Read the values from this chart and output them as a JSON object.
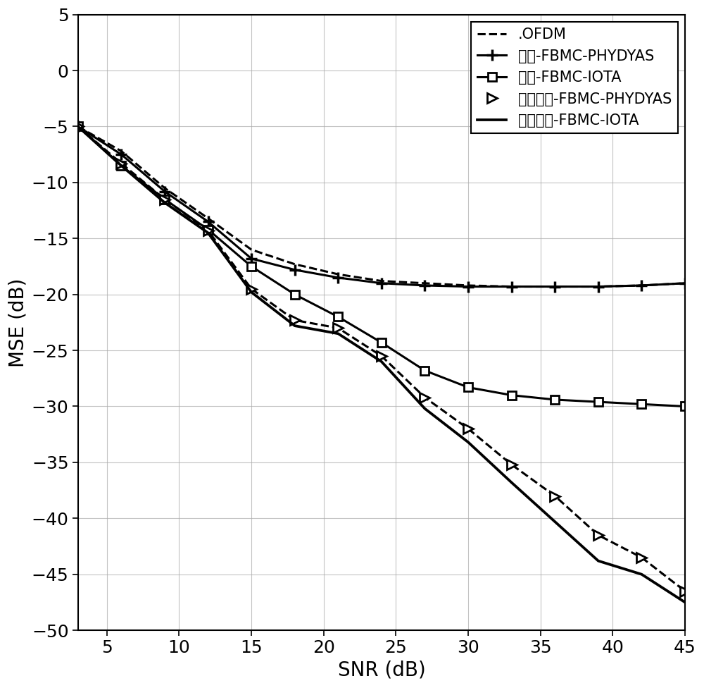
{
  "snr": [
    3,
    6,
    9,
    12,
    15,
    18,
    21,
    24,
    27,
    30,
    33,
    36,
    39,
    42,
    45
  ],
  "ofdm": [
    -5.0,
    -7.2,
    -10.5,
    -13.2,
    -16.0,
    -17.3,
    -18.2,
    -18.8,
    -19.0,
    -19.2,
    -19.3,
    -19.3,
    -19.3,
    -19.2,
    -19.0
  ],
  "trad_phy": [
    -5.0,
    -7.5,
    -10.8,
    -13.5,
    -16.8,
    -17.8,
    -18.5,
    -19.0,
    -19.2,
    -19.3,
    -19.3,
    -19.3,
    -19.3,
    -19.2,
    -19.0
  ],
  "trad_iota": [
    -5.0,
    -8.5,
    -11.5,
    -14.2,
    -17.5,
    -20.0,
    -22.0,
    -24.3,
    -26.8,
    -28.3,
    -29.0,
    -29.4,
    -29.6,
    -29.8,
    -30.0
  ],
  "ic_phy": [
    -5.0,
    -8.3,
    -11.5,
    -14.3,
    -19.5,
    -22.3,
    -23.0,
    -25.5,
    -29.2,
    -32.0,
    -35.2,
    -38.0,
    -41.5,
    -43.5,
    -46.5
  ],
  "ic_iota": [
    -5.0,
    -8.5,
    -11.8,
    -14.5,
    -19.8,
    -22.8,
    -23.5,
    -26.0,
    -30.2,
    -33.2,
    -36.8,
    -40.3,
    -43.8,
    -45.0,
    -47.5
  ],
  "xlim": [
    3,
    45
  ],
  "ylim": [
    -50,
    5
  ],
  "xlabel": "SNR (dB)",
  "ylabel": "MSE (dB)",
  "xticks": [
    5,
    10,
    15,
    20,
    25,
    30,
    35,
    40,
    45
  ],
  "yticks": [
    5,
    0,
    -5,
    -10,
    -15,
    -20,
    -25,
    -30,
    -35,
    -40,
    -45,
    -50
  ],
  "legend_labels": [
    ".OFDM",
    "传统-FBMC-PHYDYAS",
    "传统-FBMC-IOTA",
    "干扰消除-FBMC-PHYDYAS",
    "干扰消除-FBMC-IOTA"
  ],
  "background_color": "#ffffff",
  "grid_color": "#aaaaaa",
  "fontsize_tick": 18,
  "fontsize_label": 20,
  "fontsize_legend": 15,
  "lw": 2.2
}
